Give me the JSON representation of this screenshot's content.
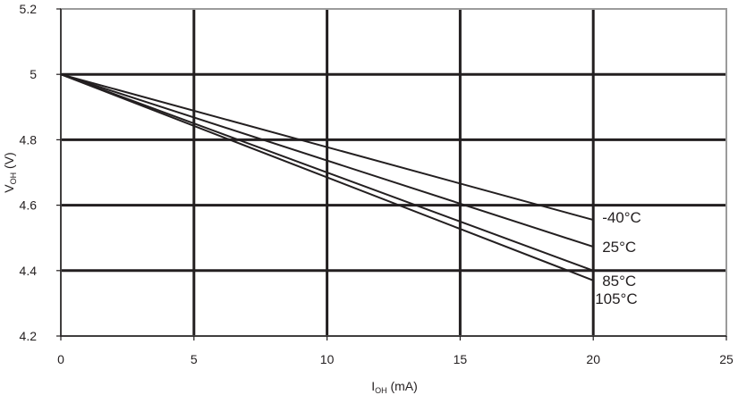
{
  "chart_data": {
    "type": "line",
    "title": "",
    "xlabel": {
      "main": "I",
      "sub": "OH",
      "unit": " (mA)"
    },
    "ylabel": {
      "main": "V",
      "sub": "OH",
      "unit": " (V)"
    },
    "xlim": [
      0,
      25
    ],
    "ylim": [
      4.2,
      5.2
    ],
    "xticks": [
      0,
      5,
      10,
      15,
      20,
      25
    ],
    "yticks": [
      4.2,
      4.4,
      4.6,
      4.8,
      5,
      5.2
    ],
    "xtick_labels": [
      "0",
      "5",
      "10",
      "15",
      "20",
      "25"
    ],
    "ytick_labels": [
      "4.2",
      "4.4",
      "4.6",
      "4.8",
      "5",
      "5.2"
    ],
    "grid": true,
    "legend": "inline labels at line ends",
    "colors": {
      "grid": "#231f20",
      "line": "#231f20",
      "frame": "#9b9b9b"
    },
    "series": [
      {
        "name": "-40°C",
        "x": [
          0,
          20
        ],
        "y": [
          5.0,
          4.555
        ]
      },
      {
        "name": "25°C",
        "x": [
          0,
          20
        ],
        "y": [
          5.0,
          4.473
        ]
      },
      {
        "name": "85°C",
        "x": [
          0,
          20
        ],
        "y": [
          5.0,
          4.4
        ]
      },
      {
        "name": "105°C",
        "x": [
          0,
          20
        ],
        "y": [
          5.0,
          4.37
        ]
      }
    ]
  }
}
